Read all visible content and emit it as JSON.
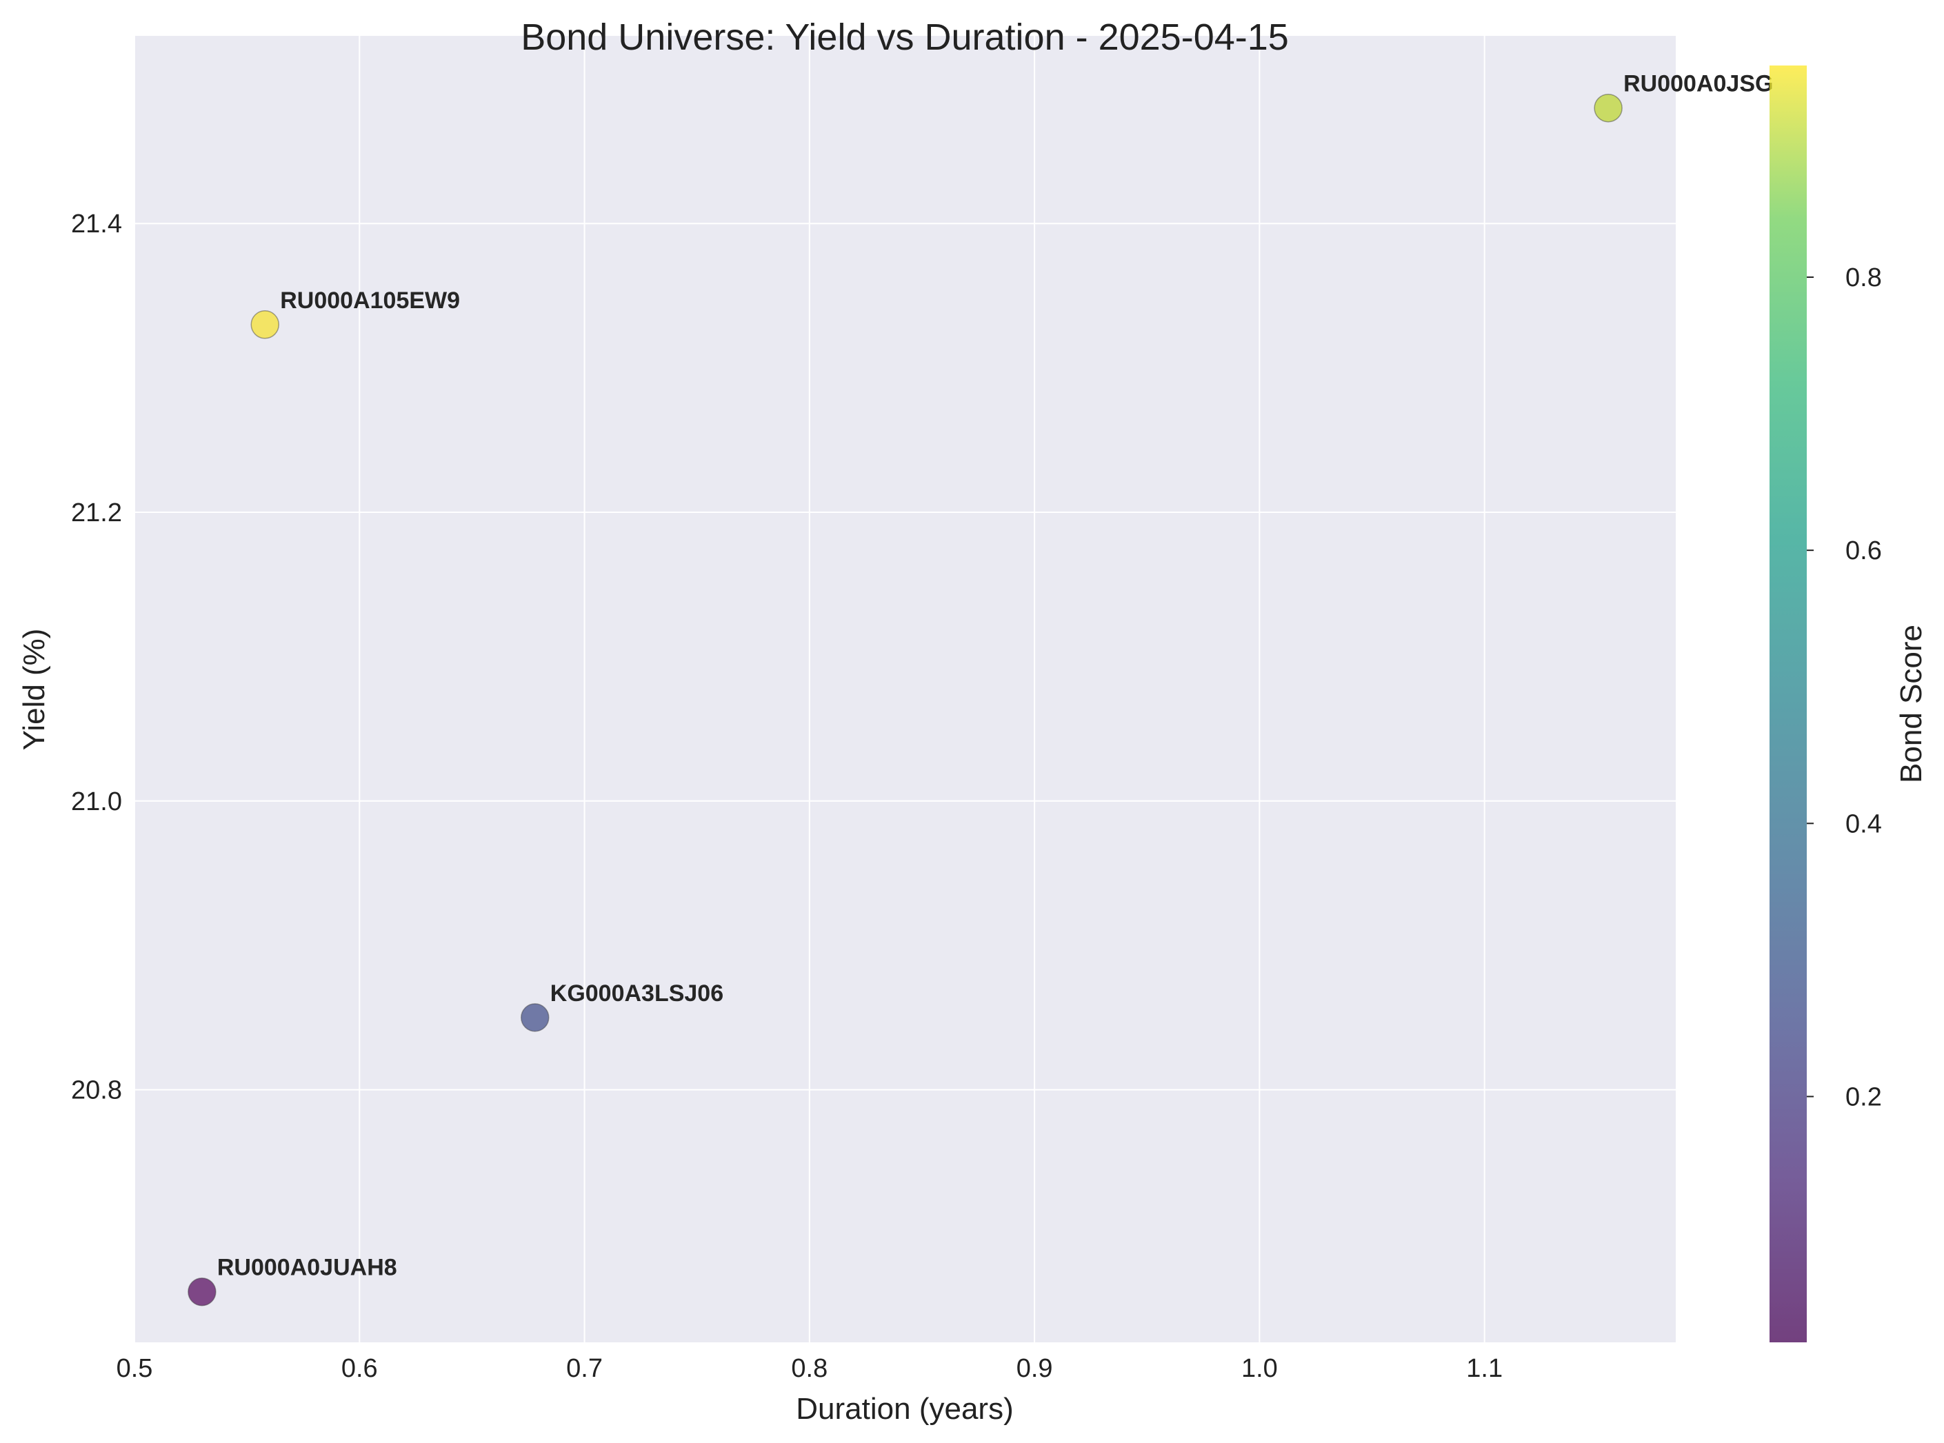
{
  "chart_data": {
    "type": "scatter",
    "title": "Bond Universe: Yield vs Duration - 2025-04-15",
    "xlabel": "Duration (years)",
    "ylabel": "Yield (%)",
    "xlim": [
      0.5,
      1.185
    ],
    "ylim": [
      20.625,
      21.53
    ],
    "xticks": [
      0.5,
      0.6,
      0.7,
      0.8,
      0.9,
      1.0,
      1.1
    ],
    "xtick_labels": [
      "0.5",
      "0.6",
      "0.7",
      "0.8",
      "0.9",
      "1.0",
      "1.1"
    ],
    "yticks": [
      20.8,
      21.0,
      21.2,
      21.4
    ],
    "ytick_labels": [
      "20.8",
      "21.0",
      "21.2",
      "21.4"
    ],
    "grid": true,
    "colormap": "viridis",
    "colorbar": {
      "label": "Bond Score",
      "range": [
        0.02,
        0.955
      ],
      "ticks": [
        0.2,
        0.4,
        0.6,
        0.8
      ],
      "tick_labels": [
        "0.2",
        "0.4",
        "0.6",
        "0.8"
      ]
    },
    "points": [
      {
        "label": "RU000A0JUAH8",
        "x": 0.53,
        "y": 20.66,
        "score": 0.02,
        "color": "#6b2a73"
      },
      {
        "label": "KG000A3LSJ06",
        "x": 0.678,
        "y": 20.85,
        "score": 0.23,
        "color": "#5a6599"
      },
      {
        "label": "RU000A105EW9",
        "x": 0.558,
        "y": 21.33,
        "score": 0.955,
        "color": "#f4e34c"
      },
      {
        "label": "RU000A0JSG",
        "x": 1.155,
        "y": 21.48,
        "score": 0.87,
        "color": "#c3d84b"
      }
    ]
  }
}
